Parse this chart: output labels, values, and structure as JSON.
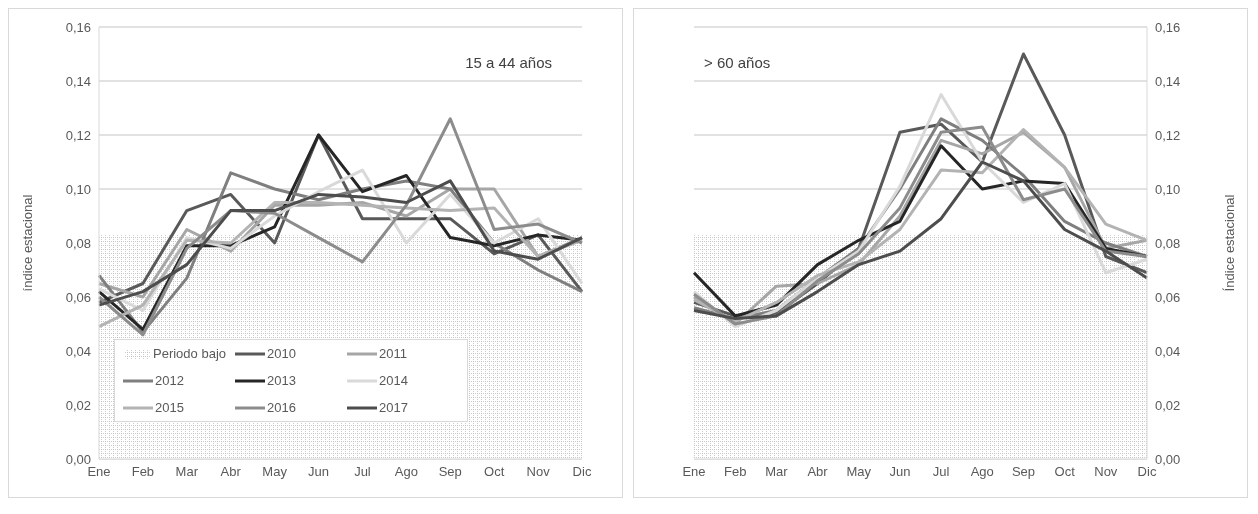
{
  "chart_data": [
    {
      "type": "line",
      "annotations": [
        "15 a 44 años"
      ],
      "ylabel": "índice estacional",
      "categories": [
        "Ene",
        "Feb",
        "Mar",
        "Abr",
        "May",
        "Jun",
        "Jul",
        "Ago",
        "Sep",
        "Oct",
        "Nov",
        "Dic"
      ],
      "ylim": [
        0,
        0.16
      ],
      "yticks": [
        {
          "value": 0,
          "label": "0,00"
        },
        {
          "value": 0.02,
          "label": "0,02"
        },
        {
          "value": 0.04,
          "label": "0,04"
        },
        {
          "value": 0.06,
          "label": "0,06"
        },
        {
          "value": 0.08,
          "label": "0,08"
        },
        {
          "value": 0.1,
          "label": "0,10"
        },
        {
          "value": 0.12,
          "label": "0,12"
        },
        {
          "value": 0.14,
          "label": "0,14"
        },
        {
          "value": 0.16,
          "label": "0,16"
        }
      ],
      "grid": "y",
      "legend": "bottom left",
      "marker": "none",
      "line_style": "solid",
      "series": [
        {
          "name": "Periodo bajo",
          "type": "area",
          "color": "#bfbfbf",
          "values": [
            0.083,
            0.083,
            0.083,
            0.083,
            0.083,
            0.083,
            0.083,
            0.083,
            0.083,
            0.083,
            0.083,
            0.083
          ]
        },
        {
          "name": "2010",
          "color": "#595959",
          "values": [
            0.058,
            0.065,
            0.092,
            0.098,
            0.08,
            0.12,
            0.089,
            0.089,
            0.089,
            0.076,
            0.083,
            0.062
          ]
        },
        {
          "name": "2011",
          "color": "#a6a6a6",
          "values": [
            0.065,
            0.06,
            0.085,
            0.077,
            0.094,
            0.094,
            0.095,
            0.09,
            0.1,
            0.1,
            0.075,
            0.082
          ]
        },
        {
          "name": "2012",
          "color": "#7f7f7f",
          "values": [
            0.068,
            0.047,
            0.067,
            0.106,
            0.1,
            0.096,
            0.1,
            0.103,
            0.1,
            0.08,
            0.07,
            0.062
          ]
        },
        {
          "name": "2013",
          "color": "#262626",
          "values": [
            0.062,
            0.048,
            0.079,
            0.079,
            0.086,
            0.12,
            0.099,
            0.105,
            0.082,
            0.079,
            0.083,
            0.081
          ]
        },
        {
          "name": "2014",
          "color": "#d9d9d9",
          "values": [
            0.063,
            0.055,
            0.082,
            0.078,
            0.09,
            0.099,
            0.107,
            0.08,
            0.098,
            0.08,
            0.089,
            0.065
          ]
        },
        {
          "name": "2015",
          "color": "#b3b3b3",
          "values": [
            0.049,
            0.057,
            0.081,
            0.08,
            0.095,
            0.095,
            0.094,
            0.093,
            0.092,
            0.093,
            0.075,
            0.081
          ]
        },
        {
          "name": "2016",
          "color": "#8c8c8c",
          "values": [
            0.06,
            0.046,
            0.078,
            0.092,
            0.091,
            0.082,
            0.073,
            0.094,
            0.126,
            0.085,
            0.087,
            0.08
          ]
        },
        {
          "name": "2017",
          "color": "#4d4d4d",
          "values": [
            0.057,
            0.062,
            0.072,
            0.092,
            0.092,
            0.098,
            0.097,
            0.095,
            0.103,
            0.077,
            0.074,
            0.082
          ]
        }
      ]
    },
    {
      "type": "line",
      "annotations": [
        "> 60 años"
      ],
      "y2label": "Índice estacional",
      "categories": [
        "Ene",
        "Feb",
        "Mar",
        "Abr",
        "May",
        "Jun",
        "Jul",
        "Ago",
        "Sep",
        "Oct",
        "Nov",
        "Dic"
      ],
      "y2lim": [
        0,
        0.16
      ],
      "y2ticks": [
        {
          "value": 0,
          "label": "0,00"
        },
        {
          "value": 0.02,
          "label": "0,02"
        },
        {
          "value": 0.04,
          "label": "0,04"
        },
        {
          "value": 0.06,
          "label": "0,06"
        },
        {
          "value": 0.08,
          "label": "0,08"
        },
        {
          "value": 0.1,
          "label": "0,10"
        },
        {
          "value": 0.12,
          "label": "0,12"
        },
        {
          "value": 0.14,
          "label": "0,14"
        },
        {
          "value": 0.16,
          "label": "0,16"
        }
      ],
      "grid": "y",
      "marker": "none",
      "line_style": "solid",
      "series": [
        {
          "type": "area",
          "axis": "y2",
          "color": "#bfbfbf",
          "values": [
            0.083,
            0.083,
            0.083,
            0.083,
            0.083,
            0.083,
            0.083,
            0.083,
            0.083,
            0.083,
            0.083,
            0.083
          ]
        },
        {
          "axis": "y2",
          "color": "#595959",
          "values": [
            0.058,
            0.053,
            0.054,
            0.065,
            0.078,
            0.121,
            0.124,
            0.11,
            0.15,
            0.12,
            0.075,
            0.069
          ]
        },
        {
          "axis": "y2",
          "color": "#a6a6a6",
          "values": [
            0.06,
            0.05,
            0.064,
            0.065,
            0.072,
            0.09,
            0.118,
            0.113,
            0.121,
            0.108,
            0.078,
            0.081
          ]
        },
        {
          "axis": "y2",
          "color": "#7f7f7f",
          "values": [
            0.056,
            0.052,
            0.055,
            0.067,
            0.078,
            0.1,
            0.126,
            0.118,
            0.105,
            0.088,
            0.08,
            0.075
          ]
        },
        {
          "axis": "y2",
          "color": "#262626",
          "values": [
            0.069,
            0.053,
            0.057,
            0.072,
            0.081,
            0.088,
            0.116,
            0.1,
            0.103,
            0.102,
            0.078,
            0.075
          ]
        },
        {
          "axis": "y2",
          "color": "#d9d9d9",
          "values": [
            0.062,
            0.049,
            0.055,
            0.067,
            0.077,
            0.101,
            0.135,
            0.11,
            0.095,
            0.102,
            0.069,
            0.074
          ]
        },
        {
          "axis": "y2",
          "color": "#b3b3b3",
          "values": [
            0.059,
            0.051,
            0.058,
            0.068,
            0.073,
            0.085,
            0.107,
            0.106,
            0.122,
            0.108,
            0.087,
            0.081
          ]
        },
        {
          "axis": "y2",
          "color": "#8c8c8c",
          "values": [
            0.061,
            0.05,
            0.053,
            0.066,
            0.076,
            0.093,
            0.121,
            0.123,
            0.096,
            0.1,
            0.077,
            0.075
          ]
        },
        {
          "axis": "y2",
          "color": "#4d4d4d",
          "values": [
            0.055,
            0.052,
            0.053,
            0.062,
            0.072,
            0.077,
            0.089,
            0.11,
            0.103,
            0.085,
            0.077,
            0.067
          ]
        }
      ]
    }
  ]
}
